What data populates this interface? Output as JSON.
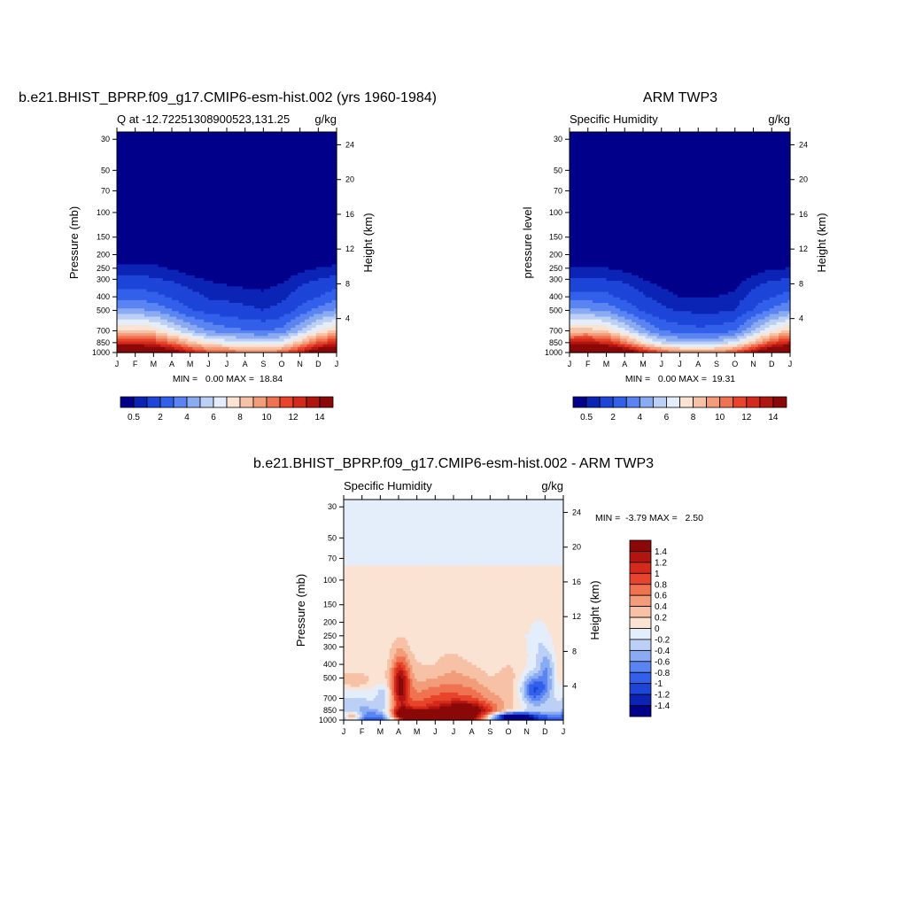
{
  "chart_data": [
    {
      "type": "heatmap",
      "title": "b.e21.BHIST_BPRP.f09_g17.CMIP6-esm-hist.002 (yrs 1960-1984)",
      "left_subtitle": "Q at -12.72251308900523,131.25",
      "right_subtitle": "g/kg",
      "ylabel": "Pressure (mb)",
      "ylabel_right": "Height (km)",
      "x_ticks": [
        "J",
        "F",
        "M",
        "A",
        "M",
        "J",
        "J",
        "A",
        "S",
        "O",
        "N",
        "D",
        "J"
      ],
      "y_ticks": [
        30,
        50,
        70,
        100,
        150,
        200,
        250,
        300,
        400,
        500,
        700,
        850,
        1000
      ],
      "y_ticks_right": [
        24,
        20,
        16,
        12,
        8,
        4
      ],
      "stats": "MIN =   0.00 MAX =  18.84",
      "colorbar_labels": [
        "0.5",
        "2",
        "4",
        "6",
        "8",
        "10",
        "12",
        "14"
      ],
      "colorbar_colors": [
        "#00008b",
        "#0b24b6",
        "#1d45d8",
        "#3260ea",
        "#5a84f2",
        "#8aaaf2",
        "#bcd0f5",
        "#e4eefa",
        "#fbe3d4",
        "#f7c1a6",
        "#f39c7a",
        "#ef7350",
        "#e8442b",
        "#d42a1b",
        "#b01510",
        "#8a0808"
      ],
      "cmin": 0.5,
      "cmax": 14,
      "values_model": [
        [
          0.0,
          0.0,
          0.0,
          0.0,
          0.0,
          0.0,
          0.0,
          0.0,
          0.0,
          0.0,
          0.0,
          0.0,
          0.0
        ],
        [
          0.0,
          0.0,
          0.0,
          0.0,
          0.0,
          0.0,
          0.0,
          0.0,
          0.0,
          0.0,
          0.0,
          0.0,
          0.0
        ],
        [
          0.0,
          0.0,
          0.0,
          0.0,
          0.0,
          0.0,
          0.0,
          0.0,
          0.0,
          0.0,
          0.0,
          0.0,
          0.0
        ],
        [
          0.0,
          0.0,
          0.0,
          0.0,
          0.0,
          0.0,
          0.0,
          0.0,
          0.0,
          0.0,
          0.0,
          0.0,
          0.0
        ],
        [
          0.02,
          0.02,
          0.02,
          0.02,
          0.01,
          0.01,
          0.01,
          0.01,
          0.01,
          0.01,
          0.01,
          0.02,
          0.02
        ],
        [
          0.2,
          0.2,
          0.2,
          0.15,
          0.1,
          0.08,
          0.06,
          0.06,
          0.06,
          0.08,
          0.1,
          0.15,
          0.2
        ],
        [
          0.6,
          0.6,
          0.6,
          0.45,
          0.3,
          0.2,
          0.15,
          0.15,
          0.15,
          0.2,
          0.35,
          0.5,
          0.6
        ],
        [
          1.2,
          1.2,
          1.1,
          0.9,
          0.6,
          0.45,
          0.35,
          0.3,
          0.3,
          0.4,
          0.7,
          1.0,
          1.2
        ],
        [
          2.6,
          2.6,
          2.4,
          1.8,
          1.3,
          0.9,
          0.8,
          0.7,
          0.6,
          0.8,
          1.4,
          2.0,
          2.6
        ],
        [
          4.2,
          4.2,
          3.9,
          3.0,
          2.1,
          1.6,
          1.4,
          1.2,
          1.0,
          1.3,
          2.3,
          3.4,
          4.2
        ],
        [
          8.2,
          8.3,
          7.8,
          6.4,
          5.0,
          3.9,
          3.4,
          3.1,
          2.9,
          3.3,
          5.0,
          7.0,
          8.2
        ],
        [
          12.6,
          12.8,
          12.2,
          10.5,
          8.5,
          7.1,
          6.6,
          6.2,
          6.0,
          6.5,
          8.6,
          11.2,
          12.6
        ],
        [
          17.5,
          17.9,
          17.2,
          15.5,
          13.0,
          11.5,
          10.8,
          10.4,
          10.1,
          10.7,
          13.0,
          16.0,
          17.5
        ]
      ]
    },
    {
      "type": "heatmap",
      "title": "ARM TWP3",
      "left_subtitle": "Specific Humidity",
      "right_subtitle": "g/kg",
      "ylabel": "pressure level",
      "ylabel_right": "Height (km)",
      "x_ticks": [
        "J",
        "F",
        "M",
        "A",
        "M",
        "J",
        "J",
        "A",
        "S",
        "O",
        "N",
        "D",
        "J"
      ],
      "y_ticks": [
        30,
        50,
        70,
        100,
        150,
        200,
        250,
        300,
        400,
        500,
        700,
        850,
        1000
      ],
      "y_ticks_right": [
        24,
        20,
        16,
        12,
        8,
        4
      ],
      "stats": "MIN =   0.00 MAX =  19.31",
      "colorbar_labels": [
        "0.5",
        "2",
        "4",
        "6",
        "8",
        "10",
        "12",
        "14"
      ],
      "colorbar_colors": [
        "#00008b",
        "#0b24b6",
        "#1d45d8",
        "#3260ea",
        "#5a84f2",
        "#8aaaf2",
        "#bcd0f5",
        "#e4eefa",
        "#fbe3d4",
        "#f7c1a6",
        "#f39c7a",
        "#ef7350",
        "#e8442b",
        "#d42a1b",
        "#b01510",
        "#8a0808"
      ],
      "cmin": 0.5,
      "cmax": 14,
      "values_obs": [
        [
          0.0,
          0.0,
          0.0,
          0.0,
          0.0,
          0.0,
          0.0,
          0.0,
          0.0,
          0.0,
          0.0,
          0.0,
          0.0
        ],
        [
          0.0,
          0.0,
          0.0,
          0.0,
          0.0,
          0.0,
          0.0,
          0.0,
          0.0,
          0.0,
          0.0,
          0.0,
          0.0
        ],
        [
          0.0,
          0.0,
          0.0,
          0.0,
          0.0,
          0.0,
          0.0,
          0.0,
          0.0,
          0.0,
          0.0,
          0.0,
          0.0
        ],
        [
          0.0,
          0.0,
          0.0,
          0.0,
          0.0,
          0.0,
          0.0,
          0.0,
          0.0,
          0.0,
          0.0,
          0.0,
          0.0
        ],
        [
          0.01,
          0.01,
          0.01,
          0.01,
          0.01,
          0.0,
          0.0,
          0.0,
          0.0,
          0.0,
          0.01,
          0.01,
          0.01
        ],
        [
          0.15,
          0.15,
          0.15,
          0.1,
          0.06,
          0.04,
          0.03,
          0.03,
          0.03,
          0.04,
          0.08,
          0.12,
          0.15
        ],
        [
          0.5,
          0.5,
          0.5,
          0.35,
          0.2,
          0.12,
          0.08,
          0.08,
          0.08,
          0.12,
          0.3,
          0.45,
          0.5
        ],
        [
          1.1,
          1.1,
          1.0,
          0.8,
          0.5,
          0.3,
          0.2,
          0.2,
          0.2,
          0.3,
          0.6,
          0.9,
          1.1
        ],
        [
          2.5,
          2.5,
          2.3,
          1.7,
          1.1,
          0.7,
          0.5,
          0.5,
          0.5,
          0.6,
          1.3,
          1.9,
          2.5
        ],
        [
          4.1,
          4.1,
          3.8,
          2.8,
          1.8,
          1.2,
          0.9,
          0.8,
          0.8,
          1.0,
          2.1,
          3.2,
          4.1
        ],
        [
          8.4,
          8.5,
          7.9,
          6.2,
          4.3,
          3.0,
          2.5,
          2.3,
          2.4,
          3.0,
          4.9,
          7.0,
          8.4
        ],
        [
          13.0,
          13.3,
          12.6,
          10.3,
          7.6,
          5.8,
          5.1,
          4.9,
          5.2,
          6.2,
          8.6,
          11.4,
          13.0
        ],
        [
          18.6,
          19.0,
          18.3,
          16.2,
          13.2,
          11.1,
          10.0,
          9.7,
          10.1,
          11.3,
          14.0,
          17.0,
          18.6
        ]
      ]
    },
    {
      "type": "heatmap",
      "title": "b.e21.BHIST_BPRP.f09_g17.CMIP6-esm-hist.002 - ARM TWP3",
      "left_subtitle": "Specific Humidity",
      "right_subtitle": "g/kg",
      "ylabel": "Pressure (mb)",
      "ylabel_right": "Height (km)",
      "x_ticks": [
        "J",
        "F",
        "M",
        "A",
        "M",
        "J",
        "J",
        "A",
        "S",
        "O",
        "N",
        "D",
        "J"
      ],
      "y_ticks": [
        30,
        50,
        70,
        100,
        150,
        200,
        250,
        300,
        400,
        500,
        700,
        850,
        1000
      ],
      "y_ticks_right": [
        24,
        20,
        16,
        12,
        8,
        4
      ],
      "stats": "MIN =  -3.79 MAX =   2.50",
      "colorbar_labels": [
        "1.4",
        "1.2",
        "1",
        "0.8",
        "0.6",
        "0.4",
        "0.2",
        "0",
        "-0.2",
        "-0.4",
        "-0.6",
        "-0.8",
        "-1",
        "-1.2",
        "-1.4"
      ],
      "colorbar_colors": [
        "#8a0808",
        "#b01510",
        "#d42a1b",
        "#e8442b",
        "#ef7350",
        "#f39c7a",
        "#f7c1a6",
        "#fbe3d4",
        "#e4eefa",
        "#bcd0f5",
        "#8aaaf2",
        "#5a84f2",
        "#3260ea",
        "#1d45d8",
        "#0b24b6",
        "#00008b"
      ],
      "cmin": -1.4,
      "cmax": 1.4
    }
  ]
}
